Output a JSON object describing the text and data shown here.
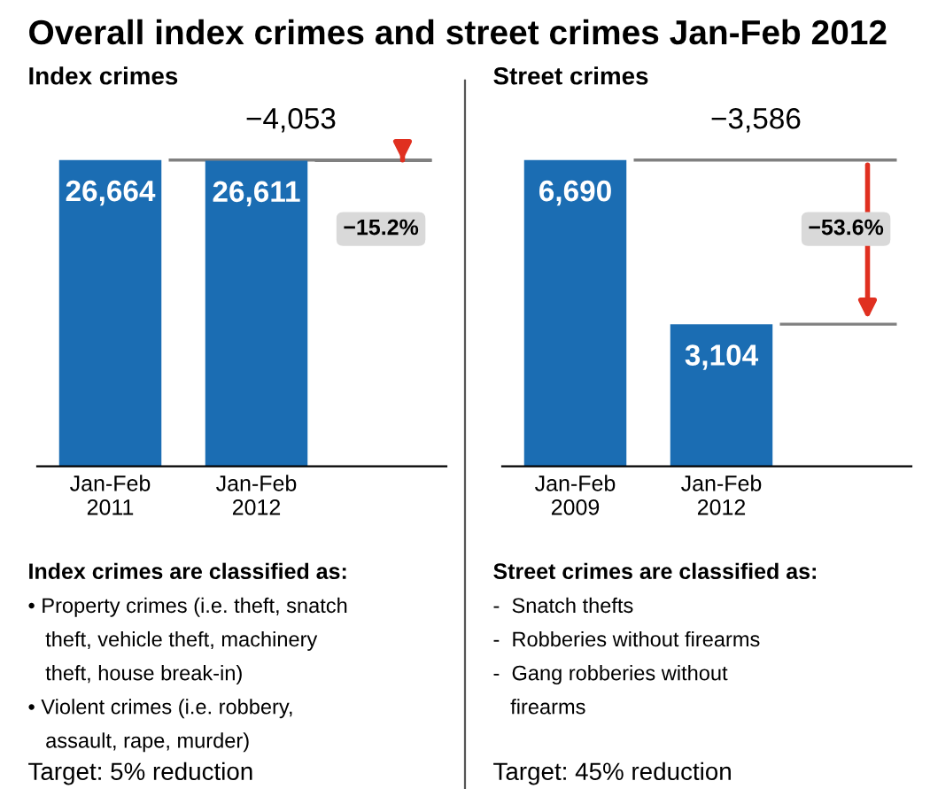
{
  "chart_data": [
    {
      "type": "bar",
      "title": "Overall index crimes and street crimes Jan-Feb 2012",
      "subtitle": "Index crimes",
      "categories": [
        "Jan-Feb\n2011",
        "Jan-Feb\n2012"
      ],
      "values": [
        26664,
        26611
      ],
      "value_labels": [
        "26,664",
        "26,611"
      ],
      "color": "#1b6db3",
      "tick_labels": "x",
      "grid": false,
      "annotations": [
        "−4,053",
        "−15.2%",
        "Index crimes are classified as:",
        "• Property crimes (i.e. theft, snatch",
        "   theft, vehicle theft, machinery",
        "   theft, house break-in)",
        "• Violent crimes (i.e. robbery,",
        "   assault, rape, murder)",
        "Target: 5% reduction"
      ]
    },
    {
      "type": "bar",
      "subtitle": "Street crimes",
      "categories": [
        "Jan-Feb\n2009",
        "Jan-Feb\n2012"
      ],
      "values": [
        6690,
        3104
      ],
      "value_labels": [
        "6,690",
        "3,104"
      ],
      "color": "#1b6db3",
      "tick_labels": "x",
      "grid": false,
      "annotations": [
        "−3,586",
        "−53.6%",
        "Street crimes are classified as:",
        "-  Snatch thefts",
        "-  Robberies without firearms",
        "-  Gang robberies without",
        "   firearms",
        "Target: 45% reduction"
      ]
    }
  ]
}
